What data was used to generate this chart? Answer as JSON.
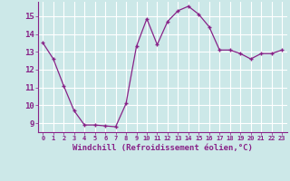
{
  "x": [
    0,
    1,
    2,
    3,
    4,
    5,
    6,
    7,
    8,
    9,
    10,
    11,
    12,
    13,
    14,
    15,
    16,
    17,
    18,
    19,
    20,
    21,
    22,
    23
  ],
  "y": [
    13.5,
    12.6,
    11.1,
    9.7,
    8.9,
    8.9,
    8.85,
    8.8,
    10.1,
    13.3,
    14.85,
    13.4,
    14.7,
    15.3,
    15.55,
    15.1,
    14.4,
    13.1,
    13.1,
    12.9,
    12.6,
    12.9,
    12.9,
    13.1
  ],
  "line_color": "#882288",
  "marker": "+",
  "background_color": "#cce8e8",
  "grid_color": "#ffffff",
  "xlabel": "Windchill (Refroidissement éolien,°C)",
  "ylabel_ticks": [
    9,
    10,
    11,
    12,
    13,
    14,
    15
  ],
  "xlim": [
    -0.5,
    23.5
  ],
  "ylim": [
    8.5,
    15.8
  ],
  "tick_color": "#882288",
  "label_color": "#882288"
}
